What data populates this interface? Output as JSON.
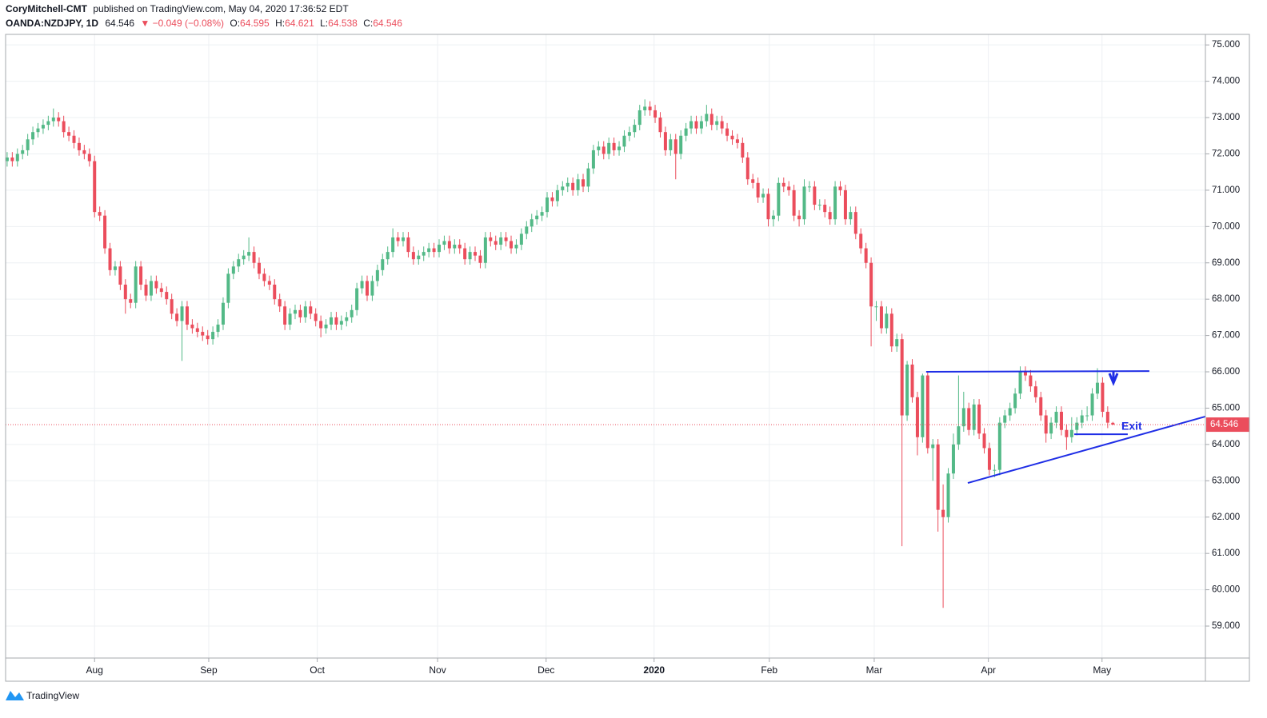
{
  "header": {
    "author": "CoryMitchell-CMT",
    "published": "published on TradingView.com, May 04, 2020 17:36:52 EDT",
    "symbol": "OANDA:NZDJPY, 1D",
    "change": "▼ −0.049 (−0.08%)",
    "ohlc_labels": [
      "O:",
      "H:",
      "L:",
      "C:"
    ]
  },
  "footer": {
    "brand": "TradingView"
  },
  "chart_data": {
    "type": "candlestick",
    "up_color": "#53b987",
    "down_color": "#eb4d5c",
    "grid": true,
    "xlim": [
      -0.3,
      233
    ],
    "ylim": [
      58.12,
      75.29
    ],
    "xticks": [
      {
        "value": 17,
        "label": "Aug"
      },
      {
        "value": 39.2,
        "label": "Sep"
      },
      {
        "value": 60.3,
        "label": "Oct"
      },
      {
        "value": 83.7,
        "label": "Nov"
      },
      {
        "value": 104.8,
        "label": "Dec"
      },
      {
        "value": 125.8,
        "label": "2020"
      },
      {
        "value": 148.2,
        "label": "Feb"
      },
      {
        "value": 168.6,
        "label": "Mar"
      },
      {
        "value": 190.8,
        "label": "Apr"
      },
      {
        "value": 212.9,
        "label": "May"
      }
    ],
    "yticks": [
      {
        "value": 59,
        "label": "59.000"
      },
      {
        "value": 60,
        "label": "60.000"
      },
      {
        "value": 61,
        "label": "61.000"
      },
      {
        "value": 62,
        "label": "62.000"
      },
      {
        "value": 63,
        "label": "63.000"
      },
      {
        "value": 64,
        "label": "64.000"
      },
      {
        "value": 65,
        "label": "65.000"
      },
      {
        "value": 66,
        "label": "66.000"
      },
      {
        "value": 67,
        "label": "67.000"
      },
      {
        "value": 68,
        "label": "68.000"
      },
      {
        "value": 69,
        "label": "69.000"
      },
      {
        "value": 70,
        "label": "70.000"
      },
      {
        "value": 71,
        "label": "71.000"
      },
      {
        "value": 72,
        "label": "72.000"
      },
      {
        "value": 73,
        "label": "73.000"
      },
      {
        "value": 74,
        "label": "74.000"
      },
      {
        "value": 75,
        "label": "75.000"
      }
    ],
    "annotation_text": "Exit",
    "trendlines": [
      {
        "color": "#1f2ee6",
        "x": [
          178.7,
          222.1
        ],
        "y": [
          66.0,
          66.02
        ]
      },
      {
        "color": "#1f2ee6",
        "x": [
          186.8,
          233
        ],
        "y": [
          62.94,
          64.77
        ]
      },
      {
        "color": "#1f2ee6",
        "x": [
          207.5,
          217.9
        ],
        "y": [
          64.28,
          64.28
        ]
      }
    ],
    "candles": [
      [
        71.8,
        72.05,
        71.65,
        71.9
      ],
      [
        71.9,
        72.05,
        71.65,
        71.8
      ],
      [
        71.8,
        72.15,
        71.65,
        72.0
      ],
      [
        72.0,
        72.25,
        71.85,
        72.1
      ],
      [
        72.1,
        72.55,
        71.95,
        72.4
      ],
      [
        72.4,
        72.75,
        72.25,
        72.6
      ],
      [
        72.6,
        72.85,
        72.45,
        72.7
      ],
      [
        72.7,
        72.95,
        72.55,
        72.8
      ],
      [
        72.8,
        73.05,
        72.65,
        72.9
      ],
      [
        72.9,
        73.25,
        72.75,
        73.0
      ],
      [
        73.0,
        73.15,
        72.75,
        72.9
      ],
      [
        72.9,
        73.05,
        72.45,
        72.6
      ],
      [
        72.6,
        72.75,
        72.35,
        72.5
      ],
      [
        72.5,
        72.65,
        72.15,
        72.3
      ],
      [
        72.3,
        72.45,
        71.95,
        72.1
      ],
      [
        72.1,
        72.25,
        71.85,
        72.0
      ],
      [
        72.0,
        72.15,
        71.65,
        71.8
      ],
      [
        71.8,
        71.95,
        70.25,
        70.4
      ],
      [
        70.4,
        70.55,
        70.15,
        70.3
      ],
      [
        70.3,
        70.45,
        69.25,
        69.4
      ],
      [
        69.4,
        69.55,
        68.65,
        68.8
      ],
      [
        68.8,
        69.05,
        68.65,
        68.9
      ],
      [
        68.9,
        69.05,
        68.25,
        68.4
      ],
      [
        68.4,
        68.55,
        67.6,
        68.0
      ],
      [
        68.0,
        68.15,
        67.75,
        67.9
      ],
      [
        67.9,
        69.05,
        67.75,
        68.9
      ],
      [
        68.9,
        69.05,
        68.25,
        68.4
      ],
      [
        68.4,
        68.55,
        67.95,
        68.1
      ],
      [
        68.1,
        68.65,
        67.95,
        68.5
      ],
      [
        68.5,
        68.65,
        68.15,
        68.3
      ],
      [
        68.3,
        68.45,
        68.05,
        68.2
      ],
      [
        68.2,
        68.35,
        67.85,
        68.0
      ],
      [
        68.0,
        68.15,
        67.45,
        67.6
      ],
      [
        67.6,
        67.75,
        67.25,
        67.4
      ],
      [
        67.4,
        67.95,
        66.3,
        67.8
      ],
      [
        67.8,
        67.95,
        67.15,
        67.3
      ],
      [
        67.3,
        67.45,
        67.05,
        67.2
      ],
      [
        67.2,
        67.35,
        66.95,
        67.1
      ],
      [
        67.1,
        67.25,
        66.85,
        67.0
      ],
      [
        67.0,
        67.15,
        66.75,
        66.9
      ],
      [
        66.9,
        67.25,
        66.75,
        67.1
      ],
      [
        67.1,
        67.45,
        66.95,
        67.3
      ],
      [
        67.3,
        68.05,
        67.15,
        67.9
      ],
      [
        67.9,
        68.85,
        67.75,
        68.7
      ],
      [
        68.7,
        69.05,
        68.55,
        68.9
      ],
      [
        68.9,
        69.25,
        68.75,
        69.1
      ],
      [
        69.1,
        69.35,
        68.95,
        69.2
      ],
      [
        69.2,
        69.7,
        69.05,
        69.3
      ],
      [
        69.3,
        69.45,
        68.85,
        69.0
      ],
      [
        69.0,
        69.15,
        68.55,
        68.7
      ],
      [
        68.7,
        68.85,
        68.35,
        68.5
      ],
      [
        68.5,
        68.65,
        68.25,
        68.4
      ],
      [
        68.4,
        68.55,
        67.85,
        68.0
      ],
      [
        68.0,
        68.15,
        67.65,
        67.8
      ],
      [
        67.8,
        67.95,
        67.15,
        67.3
      ],
      [
        67.3,
        67.75,
        67.15,
        67.6
      ],
      [
        67.6,
        67.85,
        67.45,
        67.7
      ],
      [
        67.7,
        67.85,
        67.35,
        67.5
      ],
      [
        67.5,
        67.95,
        67.35,
        67.8
      ],
      [
        67.8,
        67.95,
        67.45,
        67.6
      ],
      [
        67.6,
        67.75,
        67.25,
        67.4
      ],
      [
        67.4,
        67.55,
        66.95,
        67.2
      ],
      [
        67.2,
        67.45,
        67.05,
        67.3
      ],
      [
        67.3,
        67.65,
        67.15,
        67.5
      ],
      [
        67.5,
        67.65,
        67.15,
        67.3
      ],
      [
        67.3,
        67.55,
        67.15,
        67.4
      ],
      [
        67.4,
        67.65,
        67.25,
        67.5
      ],
      [
        67.5,
        67.85,
        67.35,
        67.7
      ],
      [
        67.7,
        68.45,
        67.55,
        68.3
      ],
      [
        68.3,
        68.65,
        68.15,
        68.5
      ],
      [
        68.5,
        68.65,
        67.95,
        68.1
      ],
      [
        68.1,
        68.65,
        67.95,
        68.5
      ],
      [
        68.5,
        68.95,
        68.35,
        68.8
      ],
      [
        68.8,
        69.25,
        68.65,
        69.1
      ],
      [
        69.1,
        69.45,
        68.95,
        69.3
      ],
      [
        69.3,
        69.95,
        69.15,
        69.7
      ],
      [
        69.7,
        69.85,
        69.45,
        69.6
      ],
      [
        69.6,
        69.85,
        69.45,
        69.7
      ],
      [
        69.7,
        69.85,
        69.15,
        69.3
      ],
      [
        69.3,
        69.45,
        68.95,
        69.1
      ],
      [
        69.1,
        69.35,
        68.95,
        69.2
      ],
      [
        69.2,
        69.45,
        69.05,
        69.3
      ],
      [
        69.3,
        69.55,
        69.15,
        69.4
      ],
      [
        69.4,
        69.55,
        69.15,
        69.3
      ],
      [
        69.3,
        69.65,
        69.15,
        69.5
      ],
      [
        69.5,
        69.75,
        69.35,
        69.6
      ],
      [
        69.6,
        69.75,
        69.25,
        69.4
      ],
      [
        69.4,
        69.65,
        69.25,
        69.5
      ],
      [
        69.5,
        69.65,
        69.25,
        69.4
      ],
      [
        69.4,
        69.55,
        68.95,
        69.1
      ],
      [
        69.1,
        69.45,
        68.95,
        69.3
      ],
      [
        69.3,
        69.45,
        69.05,
        69.2
      ],
      [
        69.2,
        69.35,
        68.85,
        69.0
      ],
      [
        69.0,
        69.85,
        68.85,
        69.7
      ],
      [
        69.7,
        69.85,
        69.45,
        69.6
      ],
      [
        69.6,
        69.75,
        69.35,
        69.5
      ],
      [
        69.5,
        69.85,
        69.35,
        69.7
      ],
      [
        69.7,
        69.85,
        69.45,
        69.6
      ],
      [
        69.6,
        69.75,
        69.25,
        69.4
      ],
      [
        69.4,
        69.65,
        69.25,
        69.5
      ],
      [
        69.5,
        69.95,
        69.35,
        69.8
      ],
      [
        69.8,
        70.15,
        69.65,
        70.0
      ],
      [
        70.0,
        70.35,
        69.85,
        70.2
      ],
      [
        70.2,
        70.45,
        70.05,
        70.3
      ],
      [
        70.3,
        70.55,
        70.15,
        70.4
      ],
      [
        70.4,
        70.95,
        70.25,
        70.8
      ],
      [
        70.8,
        70.95,
        70.55,
        70.7
      ],
      [
        70.7,
        71.15,
        70.55,
        71.0
      ],
      [
        71.0,
        71.25,
        70.85,
        71.1
      ],
      [
        71.1,
        71.35,
        70.95,
        71.2
      ],
      [
        71.2,
        71.35,
        70.85,
        71.0
      ],
      [
        71.0,
        71.45,
        70.85,
        71.3
      ],
      [
        71.3,
        71.45,
        70.95,
        71.1
      ],
      [
        71.1,
        71.75,
        70.95,
        71.6
      ],
      [
        71.6,
        72.25,
        71.45,
        72.1
      ],
      [
        72.1,
        72.35,
        71.95,
        72.2
      ],
      [
        72.2,
        72.35,
        71.85,
        72.0
      ],
      [
        72.0,
        72.45,
        71.85,
        72.3
      ],
      [
        72.3,
        72.45,
        71.95,
        72.1
      ],
      [
        72.1,
        72.35,
        71.95,
        72.2
      ],
      [
        72.2,
        72.65,
        72.05,
        72.5
      ],
      [
        72.5,
        72.75,
        72.35,
        72.6
      ],
      [
        72.6,
        72.95,
        72.45,
        72.8
      ],
      [
        72.8,
        73.35,
        72.65,
        73.2
      ],
      [
        73.2,
        73.5,
        73.05,
        73.3
      ],
      [
        73.3,
        73.45,
        73.05,
        73.2
      ],
      [
        73.2,
        73.35,
        72.85,
        73.0
      ],
      [
        73.0,
        73.15,
        72.45,
        72.6
      ],
      [
        72.6,
        72.75,
        71.95,
        72.1
      ],
      [
        72.1,
        72.55,
        71.95,
        72.4
      ],
      [
        72.4,
        72.55,
        71.3,
        72.0
      ],
      [
        72.0,
        72.65,
        71.85,
        72.5
      ],
      [
        72.5,
        72.85,
        72.35,
        72.7
      ],
      [
        72.7,
        73.05,
        72.55,
        72.9
      ],
      [
        72.9,
        73.05,
        72.55,
        72.7
      ],
      [
        72.7,
        73.05,
        72.55,
        72.9
      ],
      [
        72.9,
        73.35,
        72.75,
        73.1
      ],
      [
        73.1,
        73.25,
        72.65,
        72.8
      ],
      [
        72.8,
        73.05,
        72.65,
        72.9
      ],
      [
        72.9,
        73.05,
        72.55,
        72.7
      ],
      [
        72.7,
        72.85,
        72.35,
        72.5
      ],
      [
        72.5,
        72.65,
        72.25,
        72.4
      ],
      [
        72.4,
        72.55,
        72.15,
        72.3
      ],
      [
        72.3,
        72.45,
        71.75,
        71.9
      ],
      [
        71.9,
        72.05,
        71.15,
        71.3
      ],
      [
        71.3,
        71.45,
        71.05,
        71.2
      ],
      [
        71.2,
        71.35,
        70.65,
        70.8
      ],
      [
        70.8,
        71.05,
        70.65,
        70.9
      ],
      [
        70.9,
        71.05,
        70.0,
        70.2
      ],
      [
        70.2,
        70.45,
        70.0,
        70.3
      ],
      [
        70.3,
        71.35,
        70.15,
        71.2
      ],
      [
        71.2,
        71.35,
        70.95,
        71.1
      ],
      [
        71.1,
        71.25,
        70.85,
        71.0
      ],
      [
        71.0,
        71.15,
        70.15,
        70.3
      ],
      [
        70.3,
        70.45,
        70.0,
        70.2
      ],
      [
        70.2,
        71.3,
        70.05,
        71.1
      ],
      [
        71.1,
        71.25,
        70.95,
        71.1
      ],
      [
        71.1,
        71.25,
        70.45,
        70.6
      ],
      [
        70.6,
        70.75,
        70.45,
        70.6
      ],
      [
        70.6,
        70.75,
        70.25,
        70.4
      ],
      [
        70.4,
        70.55,
        70.05,
        70.2
      ],
      [
        70.2,
        71.25,
        70.05,
        71.1
      ],
      [
        71.1,
        71.25,
        70.85,
        71.0
      ],
      [
        71.0,
        71.15,
        70.05,
        70.2
      ],
      [
        70.2,
        70.55,
        70.05,
        70.4
      ],
      [
        70.4,
        70.55,
        69.65,
        69.8
      ],
      [
        69.8,
        69.95,
        69.25,
        69.4
      ],
      [
        69.4,
        69.55,
        68.85,
        69.0
      ],
      [
        69.0,
        69.15,
        66.7,
        67.8
      ],
      [
        67.8,
        67.95,
        67.4,
        67.8
      ],
      [
        67.8,
        67.95,
        67.05,
        67.2
      ],
      [
        67.2,
        67.8,
        67.05,
        67.6
      ],
      [
        67.6,
        67.75,
        66.55,
        66.7
      ],
      [
        66.7,
        67.05,
        66.55,
        66.9
      ],
      [
        66.9,
        67.05,
        61.2,
        64.8
      ],
      [
        64.8,
        66.3,
        64.65,
        66.2
      ],
      [
        66.2,
        66.35,
        65.15,
        65.3
      ],
      [
        65.3,
        65.45,
        63.7,
        64.2
      ],
      [
        64.2,
        65.95,
        64.05,
        65.9
      ],
      [
        65.9,
        66.0,
        63.75,
        63.9
      ],
      [
        63.9,
        64.15,
        63.0,
        64.0
      ],
      [
        64.0,
        64.15,
        61.6,
        62.2
      ],
      [
        62.2,
        62.9,
        59.5,
        62.0
      ],
      [
        62.0,
        63.35,
        61.85,
        63.2
      ],
      [
        63.2,
        64.3,
        63.05,
        64.0
      ],
      [
        64.0,
        65.9,
        63.85,
        64.5
      ],
      [
        64.5,
        65.45,
        64.35,
        65.0
      ],
      [
        65.0,
        65.15,
        64.25,
        64.4
      ],
      [
        64.4,
        65.25,
        64.25,
        65.1
      ],
      [
        65.1,
        65.25,
        64.15,
        64.3
      ],
      [
        64.3,
        64.45,
        63.75,
        63.9
      ],
      [
        63.9,
        64.05,
        63.15,
        63.3
      ],
      [
        63.3,
        63.45,
        63.1,
        63.3
      ],
      [
        63.3,
        64.75,
        63.15,
        64.6
      ],
      [
        64.6,
        64.95,
        64.45,
        64.8
      ],
      [
        64.8,
        65.15,
        64.65,
        65.0
      ],
      [
        65.0,
        65.55,
        64.85,
        65.4
      ],
      [
        65.4,
        66.15,
        65.25,
        66.0
      ],
      [
        66.0,
        66.15,
        65.75,
        65.9
      ],
      [
        65.9,
        66.05,
        65.45,
        65.6
      ],
      [
        65.6,
        65.75,
        65.15,
        65.3
      ],
      [
        65.3,
        65.45,
        64.65,
        64.8
      ],
      [
        64.8,
        64.95,
        64.05,
        64.3
      ],
      [
        64.3,
        64.75,
        64.15,
        64.6
      ],
      [
        64.6,
        65.05,
        64.45,
        64.9
      ],
      [
        64.9,
        65.05,
        64.25,
        64.4
      ],
      [
        64.4,
        64.55,
        63.85,
        64.2
      ],
      [
        64.2,
        64.75,
        64.05,
        64.4
      ],
      [
        64.4,
        64.75,
        64.25,
        64.6
      ],
      [
        64.6,
        64.95,
        64.45,
        64.8
      ],
      [
        64.8,
        65.05,
        64.65,
        64.8
      ],
      [
        64.8,
        65.55,
        64.65,
        65.4
      ],
      [
        65.4,
        66.1,
        65.25,
        65.7
      ],
      [
        65.7,
        65.85,
        64.75,
        64.9
      ],
      [
        64.9,
        65.05,
        64.45,
        64.6
      ],
      [
        64.595,
        64.621,
        64.538,
        64.546
      ]
    ]
  }
}
